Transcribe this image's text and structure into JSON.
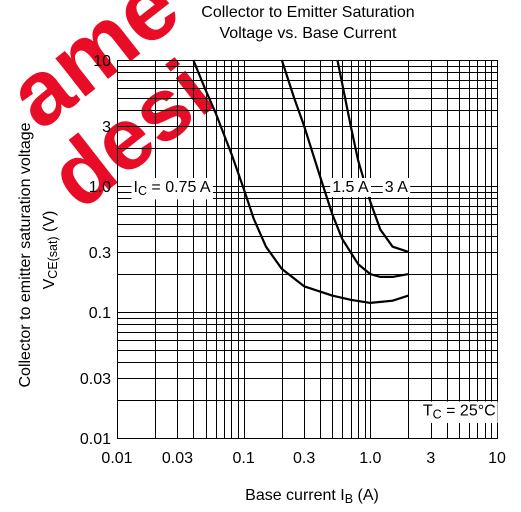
{
  "chart_data": {
    "type": "line",
    "title_lines": [
      "Collector to Emitter Saturation",
      "Voltage vs. Base Current"
    ],
    "xlabel": {
      "main": "Base current  I",
      "sub": "B",
      "unit": "  (A)"
    },
    "ylabel": {
      "line1": "Collector to emitter saturation voltage",
      "line2_main": "V",
      "line2_sub": "CE(sat)",
      "line2_unit": "  (V)"
    },
    "x_scale": "log",
    "y_scale": "log",
    "xlim": [
      0.01,
      10
    ],
    "ylim": [
      0.01,
      10
    ],
    "x_ticks": [
      {
        "v": 0.01,
        "label": "0.01"
      },
      {
        "v": 0.03,
        "label": "0.03"
      },
      {
        "v": 0.1,
        "label": "0.1"
      },
      {
        "v": 0.3,
        "label": "0.3"
      },
      {
        "v": 1.0,
        "label": "1.0"
      },
      {
        "v": 3,
        "label": "3"
      },
      {
        "v": 10,
        "label": "10"
      }
    ],
    "y_ticks": [
      {
        "v": 0.01,
        "label": "0.01"
      },
      {
        "v": 0.03,
        "label": "0.03"
      },
      {
        "v": 0.1,
        "label": "0.1"
      },
      {
        "v": 0.3,
        "label": "0.3"
      },
      {
        "v": 1.0,
        "label": "1.0"
      },
      {
        "v": 3,
        "label": "3"
      },
      {
        "v": 10,
        "label": "10"
      }
    ],
    "grid": true,
    "series": [
      {
        "name": "IC = 0.75 A",
        "label_main": "I",
        "label_sub": "C",
        "label_rest": " = 0.75 A",
        "label_at": [
          0.0135,
          1.0
        ],
        "x": [
          0.04,
          0.05,
          0.06,
          0.08,
          0.1,
          0.12,
          0.15,
          0.2,
          0.3,
          0.5,
          0.7,
          1.0,
          1.5,
          2.0
        ],
        "y": [
          10.0,
          5.8,
          3.8,
          1.8,
          0.95,
          0.55,
          0.33,
          0.22,
          0.16,
          0.135,
          0.125,
          0.118,
          0.123,
          0.135
        ]
      },
      {
        "name": "1.5 A",
        "label_main": "1.5 A",
        "label_sub": "",
        "label_rest": "",
        "label_at": [
          0.5,
          1.0
        ],
        "x": [
          0.2,
          0.25,
          0.3,
          0.4,
          0.5,
          0.6,
          0.8,
          1.0,
          1.2,
          1.5,
          2.0
        ],
        "y": [
          10.0,
          5.0,
          3.0,
          1.2,
          0.6,
          0.38,
          0.24,
          0.2,
          0.19,
          0.19,
          0.2
        ]
      },
      {
        "name": "3 A",
        "label_main": "3 A",
        "label_sub": "",
        "label_rest": "",
        "label_at": [
          1.3,
          1.0
        ],
        "x": [
          0.55,
          0.6,
          0.7,
          0.8,
          1.0,
          1.2,
          1.5,
          2.0
        ],
        "y": [
          10.0,
          6.5,
          3.0,
          1.6,
          0.75,
          0.45,
          0.33,
          0.3
        ]
      }
    ],
    "annotation": {
      "main": "T",
      "sub": "C",
      "rest": " = 25°C",
      "at": [
        2.6,
        0.014
      ]
    },
    "watermark": {
      "words": [
        "ame",
        "desi"
      ],
      "color": "#e8001c"
    }
  }
}
